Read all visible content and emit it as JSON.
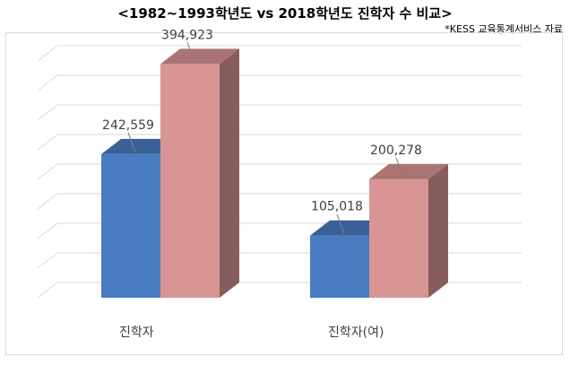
{
  "title": "<1982~1993학년도 vs 2018학년도 진학자 수 비교>",
  "source": "*KESS 교육통계서비스 자료",
  "colors": {
    "front_blue": "#4a7cc2",
    "front_pink": "#d99594",
    "gridline": "#d9d9d9"
  },
  "chart_data": {
    "type": "bar",
    "title": "<1982~1993학년도 vs 2018학년도 진학자 수 비교>",
    "categories": [
      "진학자",
      "진학자(여)"
    ],
    "series": [
      {
        "values": [
          242559,
          105018
        ],
        "labels": [
          "242,559",
          "105,018"
        ]
      },
      {
        "values": [
          394923,
          200278
        ],
        "labels": [
          "394,923",
          "200,278"
        ]
      }
    ],
    "ylim": [
      0,
      400000
    ],
    "grid": true,
    "legend": "none"
  }
}
